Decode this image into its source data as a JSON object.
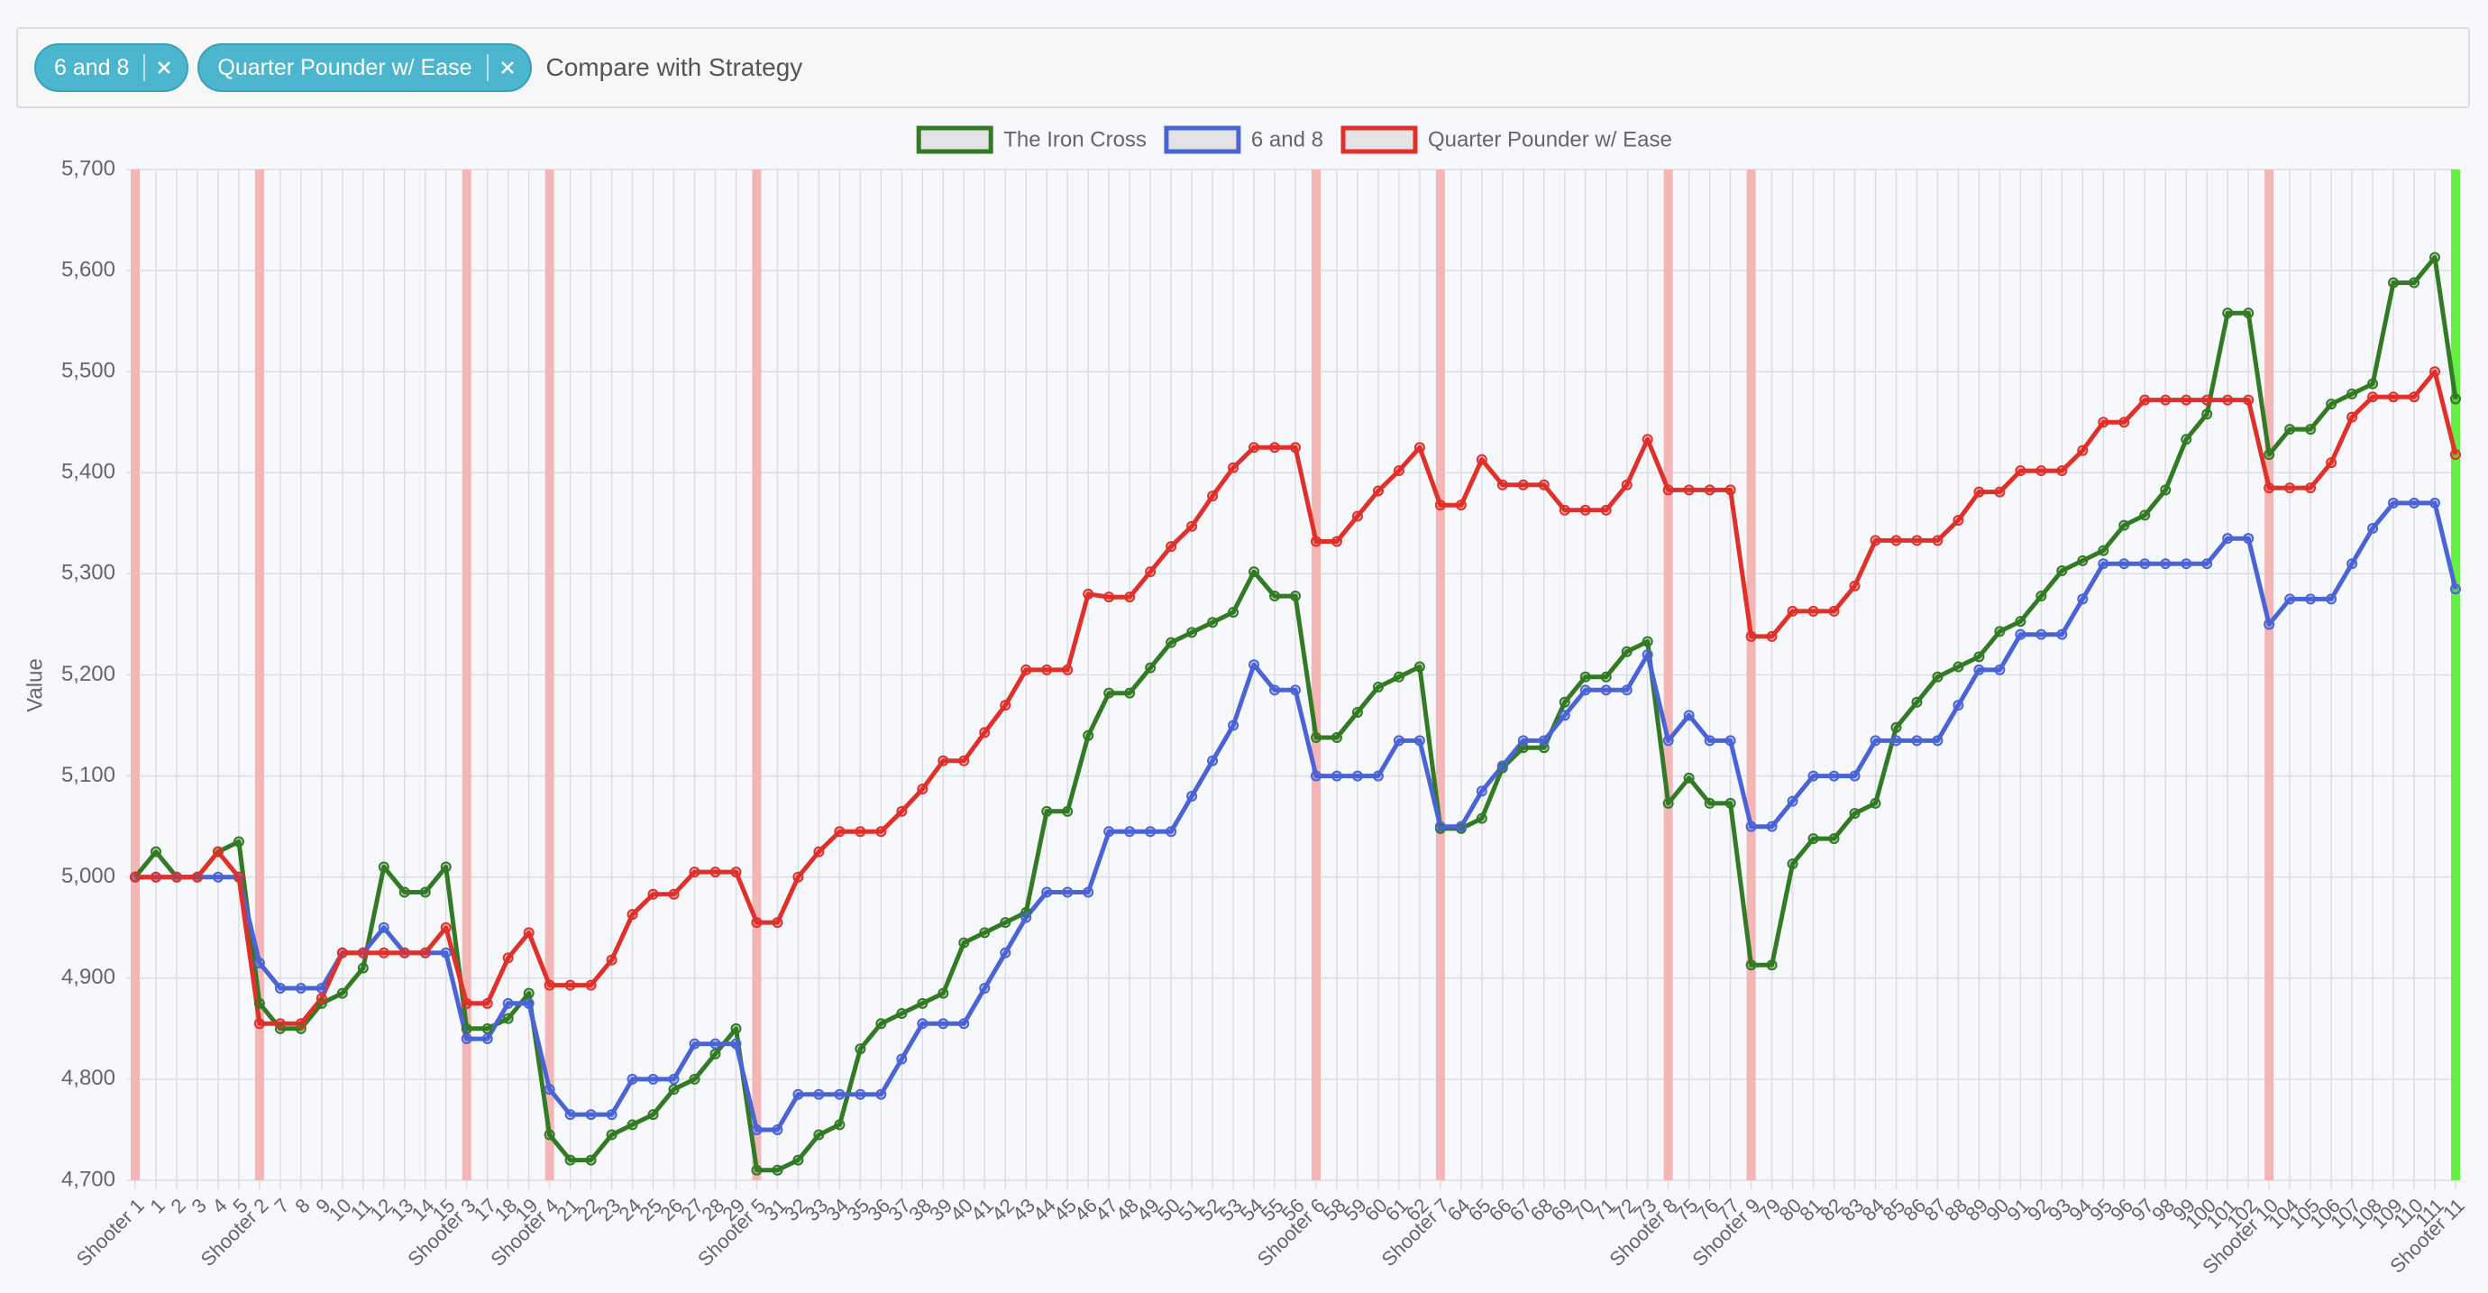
{
  "filter": {
    "chips": [
      "6 and 8",
      "Quarter Pounder w/ Ease"
    ],
    "placeholder": "Compare with Strategy"
  },
  "chart_data": {
    "type": "line",
    "y_label": "Value",
    "categories": [
      "Shooter 1",
      "1",
      "2",
      "3",
      "4",
      "5",
      "Shooter 2",
      "7",
      "8",
      "9",
      "10",
      "11",
      "12",
      "13",
      "14",
      "15",
      "Shooter 3",
      "17",
      "18",
      "19",
      "Shooter 4",
      "21",
      "22",
      "23",
      "24",
      "25",
      "26",
      "27",
      "28",
      "29",
      "Shooter 5",
      "31",
      "32",
      "33",
      "34",
      "35",
      "36",
      "37",
      "38",
      "39",
      "40",
      "41",
      "42",
      "43",
      "44",
      "45",
      "46",
      "47",
      "48",
      "49",
      "50",
      "51",
      "52",
      "53",
      "54",
      "55",
      "56",
      "Shooter 6",
      "58",
      "59",
      "60",
      "61",
      "62",
      "Shooter 7",
      "64",
      "65",
      "66",
      "67",
      "68",
      "69",
      "70",
      "71",
      "72",
      "73",
      "Shooter 8",
      "75",
      "76",
      "77",
      "Shooter 9",
      "79",
      "80",
      "81",
      "82",
      "83",
      "84",
      "85",
      "86",
      "87",
      "88",
      "89",
      "90",
      "91",
      "92",
      "93",
      "94",
      "95",
      "96",
      "97",
      "98",
      "99",
      "100",
      "101",
      "102",
      "Shooter 10",
      "104",
      "105",
      "106",
      "107",
      "108",
      "109",
      "110",
      "111",
      "Shooter 11"
    ],
    "series": [
      {
        "name": "The Iron Cross",
        "color": "#327a23",
        "values": [
          5000,
          5025,
          5000,
          5000,
          5025,
          5035,
          4875,
          4850,
          4850,
          4875,
          4885,
          4910,
          5010,
          4985,
          4985,
          5010,
          4850,
          4850,
          4860,
          4885,
          4745,
          4720,
          4720,
          4745,
          4755,
          4765,
          4790,
          4800,
          4825,
          4850,
          4710,
          4710,
          4720,
          4745,
          4755,
          4830,
          4855,
          4865,
          4875,
          4885,
          4935,
          4945,
          4955,
          4965,
          5065,
          5065,
          5140,
          5182,
          5182,
          5207,
          5232,
          5242,
          5252,
          5262,
          5302,
          5278,
          5278,
          5138,
          5138,
          5163,
          5188,
          5198,
          5208,
          5048,
          5048,
          5058,
          5108,
          5128,
          5128,
          5173,
          5198,
          5198,
          5223,
          5233,
          5073,
          5098,
          5073,
          5073,
          4913,
          4913,
          5013,
          5038,
          5038,
          5063,
          5073,
          5148,
          5173,
          5198,
          5208,
          5218,
          5243,
          5253,
          5278,
          5303,
          5313,
          5323,
          5348,
          5358,
          5383,
          5433,
          5458,
          5558,
          5558,
          5418,
          5443,
          5443,
          5468,
          5478,
          5488,
          5588,
          5588,
          5613,
          5473
        ]
      },
      {
        "name": "6 and 8",
        "color": "#4a64d6",
        "values": [
          5000,
          5000,
          5000,
          5000,
          5000,
          5000,
          4915,
          4890,
          4890,
          4890,
          4925,
          4925,
          4950,
          4925,
          4925,
          4925,
          4840,
          4840,
          4875,
          4875,
          4790,
          4765,
          4765,
          4765,
          4800,
          4800,
          4800,
          4835,
          4835,
          4835,
          4750,
          4750,
          4785,
          4785,
          4785,
          4785,
          4785,
          4820,
          4855,
          4855,
          4855,
          4890,
          4925,
          4960,
          4985,
          4985,
          4985,
          5045,
          5045,
          5045,
          5045,
          5080,
          5115,
          5150,
          5210,
          5185,
          5185,
          5100,
          5100,
          5100,
          5100,
          5135,
          5135,
          5050,
          5050,
          5085,
          5110,
          5135,
          5135,
          5160,
          5185,
          5185,
          5185,
          5220,
          5135,
          5160,
          5135,
          5135,
          5050,
          5050,
          5075,
          5100,
          5100,
          5100,
          5135,
          5135,
          5135,
          5135,
          5170,
          5205,
          5205,
          5240,
          5240,
          5240,
          5275,
          5310,
          5310,
          5310,
          5310,
          5310,
          5310,
          5335,
          5335,
          5250,
          5275,
          5275,
          5275,
          5310,
          5345,
          5370,
          5370,
          5370,
          5285
        ]
      },
      {
        "name": "Quarter Pounder w/ Ease",
        "color": "#e0302a",
        "values": [
          5000,
          5000,
          5000,
          5000,
          5025,
          5000,
          4855,
          4855,
          4855,
          4880,
          4925,
          4925,
          4925,
          4925,
          4925,
          4950,
          4875,
          4875,
          4920,
          4945,
          4893,
          4893,
          4893,
          4918,
          4963,
          4983,
          4983,
          5005,
          5005,
          5005,
          4955,
          4955,
          5000,
          5025,
          5045,
          5045,
          5045,
          5065,
          5087,
          5115,
          5115,
          5143,
          5170,
          5205,
          5205,
          5205,
          5280,
          5277,
          5277,
          5302,
          5327,
          5347,
          5377,
          5405,
          5425,
          5425,
          5425,
          5332,
          5332,
          5357,
          5382,
          5402,
          5425,
          5368,
          5368,
          5413,
          5388,
          5388,
          5388,
          5363,
          5363,
          5363,
          5388,
          5433,
          5383,
          5383,
          5383,
          5383,
          5238,
          5238,
          5263,
          5263,
          5263,
          5288,
          5333,
          5333,
          5333,
          5333,
          5353,
          5381,
          5381,
          5402,
          5402,
          5402,
          5422,
          5450,
          5450,
          5472,
          5472,
          5472,
          5472,
          5472,
          5472,
          5385,
          5385,
          5385,
          5410,
          5455,
          5475,
          5475,
          5475,
          5500,
          5418
        ]
      }
    ],
    "ylim": [
      4700,
      5700
    ],
    "yticks": [
      {
        "value": 4700,
        "label": "4,700"
      },
      {
        "value": 4800,
        "label": "4,800"
      },
      {
        "value": 4900,
        "label": "4,900"
      },
      {
        "value": 5000,
        "label": "5,000"
      },
      {
        "value": 5100,
        "label": "5,100"
      },
      {
        "value": 5200,
        "label": "5,200"
      },
      {
        "value": 5300,
        "label": "5,300"
      },
      {
        "value": 5400,
        "label": "5,400"
      },
      {
        "value": 5500,
        "label": "5,500"
      },
      {
        "value": 5600,
        "label": "5,600"
      },
      {
        "value": 5700,
        "label": "5,700"
      }
    ],
    "grid": true,
    "legend": "top",
    "band_color": "#f3b5b5",
    "last_band_color": "#66ee44"
  }
}
